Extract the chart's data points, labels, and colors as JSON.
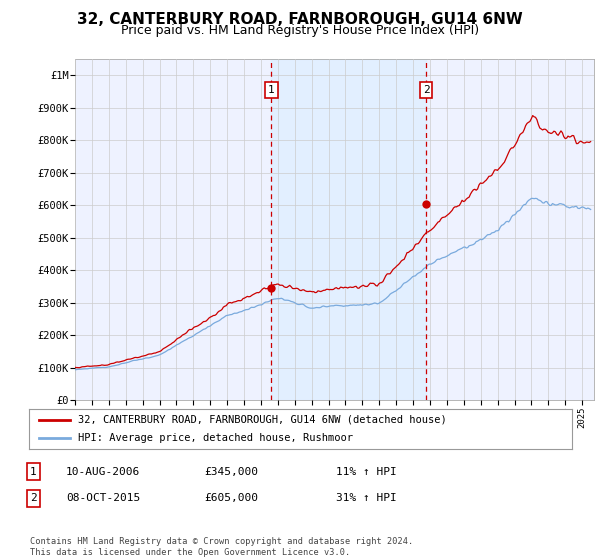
{
  "title": "32, CANTERBURY ROAD, FARNBOROUGH, GU14 6NW",
  "subtitle": "Price paid vs. HM Land Registry's House Price Index (HPI)",
  "y_ticks": [
    0,
    100000,
    200000,
    300000,
    400000,
    500000,
    600000,
    700000,
    800000,
    900000,
    1000000
  ],
  "y_tick_labels": [
    "£0",
    "£100K",
    "£200K",
    "£300K",
    "£400K",
    "£500K",
    "£600K",
    "£700K",
    "£800K",
    "£900K",
    "£1M"
  ],
  "sale1_date": 2006.62,
  "sale1_price": 345000,
  "sale2_date": 2015.78,
  "sale2_price": 605000,
  "line_color_red": "#cc0000",
  "line_color_blue": "#7aaadd",
  "shade_color": "#ddeeff",
  "vline_color": "#cc0000",
  "legend_label_red": "32, CANTERBURY ROAD, FARNBOROUGH, GU14 6NW (detached house)",
  "legend_label_blue": "HPI: Average price, detached house, Rushmoor",
  "annotation1_date": "10-AUG-2006",
  "annotation1_price": "£345,000",
  "annotation1_hpi": "11% ↑ HPI",
  "annotation2_date": "08-OCT-2015",
  "annotation2_price": "£605,000",
  "annotation2_hpi": "31% ↑ HPI",
  "footer": "Contains HM Land Registry data © Crown copyright and database right 2024.\nThis data is licensed under the Open Government Licence v3.0.",
  "grid_color": "#cccccc",
  "plot_bg_color": "#eef2ff",
  "title_fontsize": 11,
  "subtitle_fontsize": 9,
  "tick_fontsize": 7.5
}
